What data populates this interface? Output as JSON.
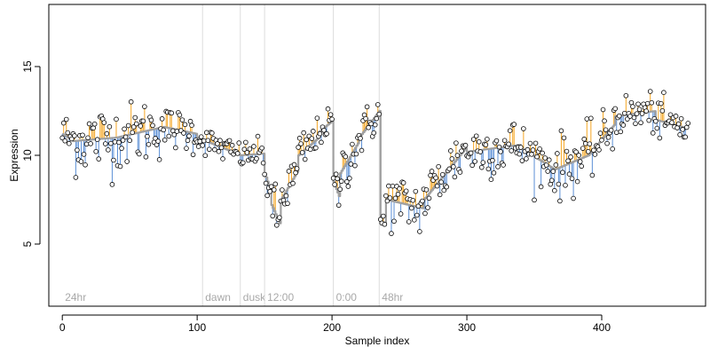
{
  "chart_data": {
    "type": "scatter",
    "title": "",
    "xlabel": "Sample index",
    "ylabel": "Expression",
    "xlim": [
      -10,
      477
    ],
    "ylim": [
      1.5,
      18.5
    ],
    "x_ticks": [
      0,
      100,
      200,
      300,
      400
    ],
    "y_ticks": [
      5,
      10,
      15
    ],
    "grid": false,
    "legend": "none",
    "colors": {
      "above_fit": "#f5a623",
      "below_fit": "#5b8fd6",
      "fit_line": "#a0a0a0",
      "point_fill": "#ffffff",
      "point_stroke": "#000000",
      "phase_line": "#dcdcdc",
      "phase_label": "#a8a8a8",
      "axis": "#000000"
    },
    "phase_markers": [
      {
        "label": "24hr",
        "x": 0,
        "line": false
      },
      {
        "label": "dawn",
        "x": 104,
        "line": true
      },
      {
        "label": "dusk",
        "x": 132,
        "line": true
      },
      {
        "label": "12:00",
        "x": 150,
        "line": true
      },
      {
        "label": "0:00",
        "x": 201,
        "line": true
      },
      {
        "label": "48hr",
        "x": 235,
        "line": true
      }
    ],
    "phase_label_y": 2.0,
    "segments": [
      {
        "x0": 0,
        "x1": 8,
        "fit0": 11.2,
        "fit1": 10.8,
        "sd": 0.7
      },
      {
        "x0": 8,
        "x1": 40,
        "fit0": 10.8,
        "fit1": 11.0,
        "sd": 1.0
      },
      {
        "x0": 40,
        "x1": 75,
        "fit0": 11.0,
        "fit1": 11.6,
        "sd": 0.9
      },
      {
        "x0": 75,
        "x1": 100,
        "fit0": 11.6,
        "fit1": 11.2,
        "sd": 0.6
      },
      {
        "x0": 100,
        "x1": 132,
        "fit0": 11.0,
        "fit1": 10.0,
        "sd": 0.4
      },
      {
        "x0": 132,
        "x1": 150,
        "fit0": 10.0,
        "fit1": 10.1,
        "sd": 0.4
      },
      {
        "x0": 150,
        "x1": 155,
        "fit0": 9.0,
        "fit1": 7.8,
        "sd": 0.7
      },
      {
        "x0": 155,
        "x1": 162,
        "fit0": 7.2,
        "fit1": 6.0,
        "sd": 0.8
      },
      {
        "x0": 162,
        "x1": 175,
        "fit0": 7.5,
        "fit1": 9.2,
        "sd": 0.7
      },
      {
        "x0": 175,
        "x1": 190,
        "fit0": 10.0,
        "fit1": 11.0,
        "sd": 0.6
      },
      {
        "x0": 190,
        "x1": 201,
        "fit0": 11.3,
        "fit1": 12.0,
        "sd": 0.4
      },
      {
        "x0": 201,
        "x1": 206,
        "fit0": 8.5,
        "fit1": 7.5,
        "sd": 0.6
      },
      {
        "x0": 206,
        "x1": 220,
        "fit0": 9.0,
        "fit1": 10.8,
        "sd": 0.8
      },
      {
        "x0": 220,
        "x1": 236,
        "fit0": 11.0,
        "fit1": 12.6,
        "sd": 0.6
      },
      {
        "x0": 236,
        "x1": 240,
        "fit0": 6.2,
        "fit1": 6.2,
        "sd": 0.3
      },
      {
        "x0": 240,
        "x1": 268,
        "fit0": 7.5,
        "fit1": 7.0,
        "sd": 0.8
      },
      {
        "x0": 268,
        "x1": 300,
        "fit0": 7.5,
        "fit1": 10.5,
        "sd": 0.8
      },
      {
        "x0": 300,
        "x1": 340,
        "fit0": 10.2,
        "fit1": 10.6,
        "sd": 0.8
      },
      {
        "x0": 340,
        "x1": 365,
        "fit0": 10.4,
        "fit1": 9.2,
        "sd": 0.7
      },
      {
        "x0": 365,
        "x1": 390,
        "fit0": 9.2,
        "fit1": 10.0,
        "sd": 0.9
      },
      {
        "x0": 390,
        "x1": 410,
        "fit0": 10.0,
        "fit1": 11.8,
        "sd": 0.7
      },
      {
        "x0": 410,
        "x1": 440,
        "fit0": 12.2,
        "fit1": 12.5,
        "sd": 0.6
      },
      {
        "x0": 440,
        "x1": 464,
        "fit0": 12.0,
        "fit1": 11.5,
        "sd": 0.6
      }
    ],
    "n_points": 465
  }
}
